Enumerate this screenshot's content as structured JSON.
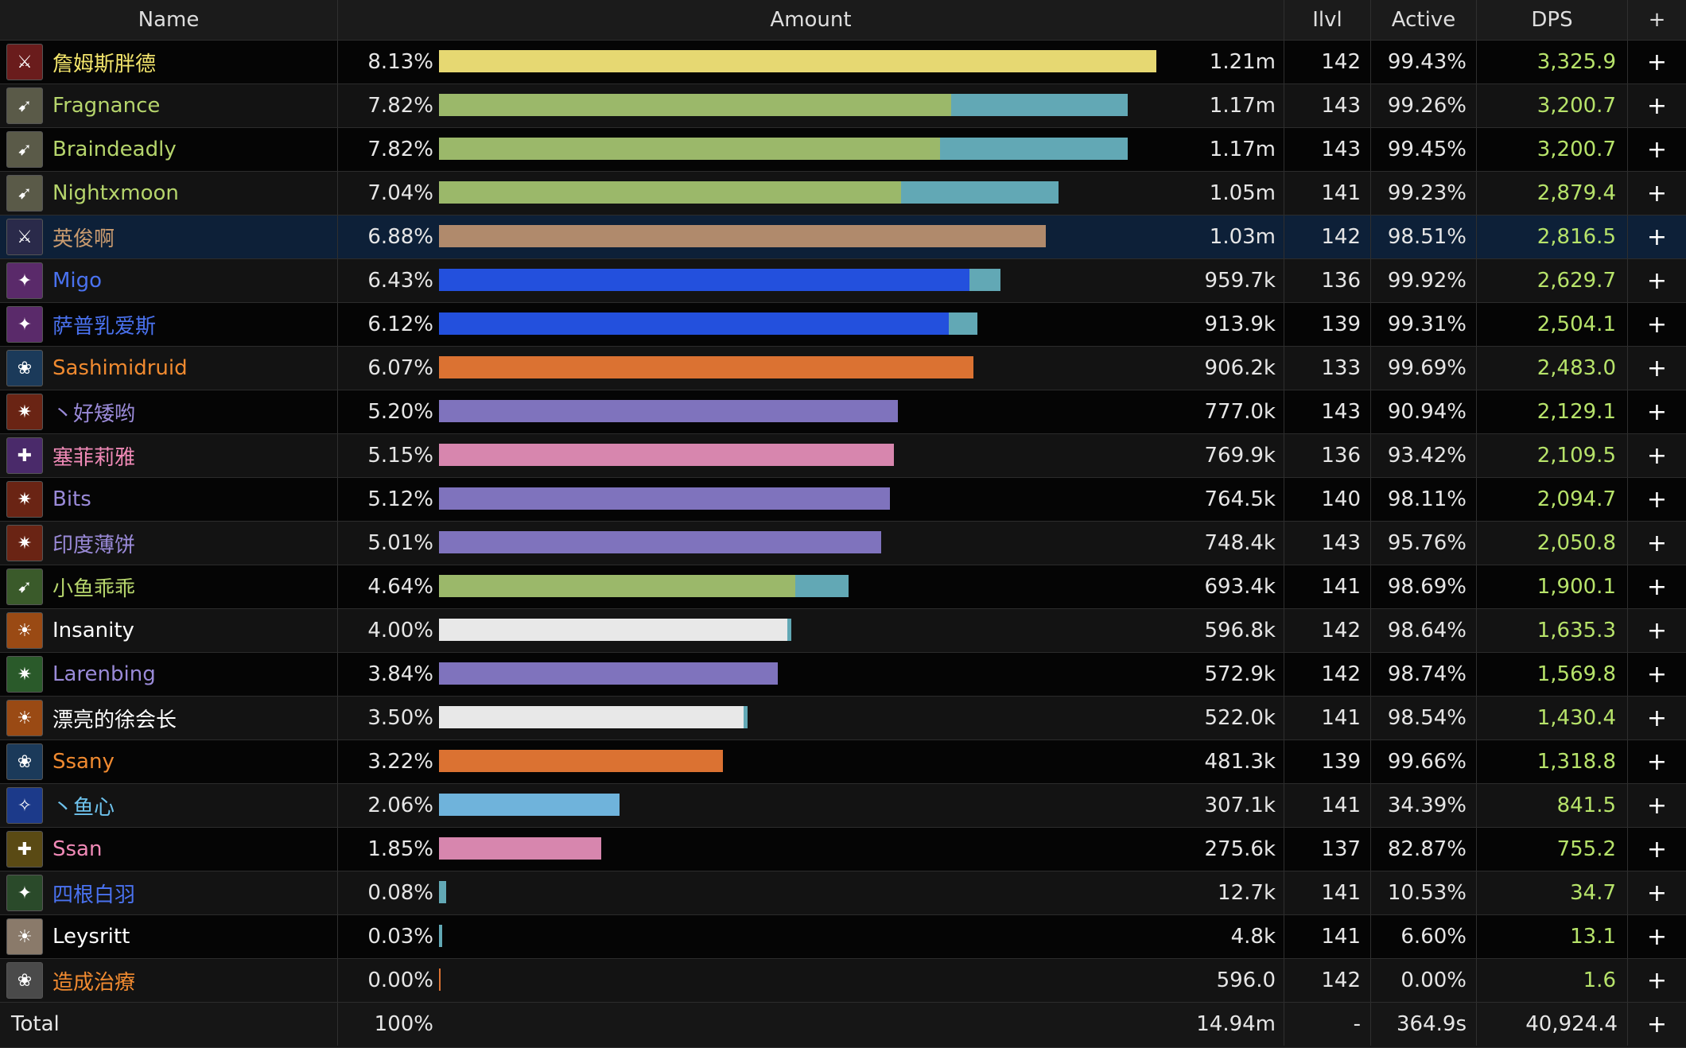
{
  "headers": {
    "name": "Name",
    "amount": "Amount",
    "ilvl": "Ilvl",
    "active": "Active",
    "dps": "DPS",
    "plus": "+"
  },
  "rows": [
    {
      "name": "詹姆斯胖德",
      "pct": "8.13%",
      "amount": "1.21m",
      "ilvl": "142",
      "active": "99.43%",
      "dps": "3,325.9",
      "name_color": "#f4e66c",
      "bar_main": 1.0,
      "bar_extra": 0.0,
      "bar_color": "#e6d872",
      "extra_color": "#62a8b5",
      "icon": "warrior-icon",
      "icon_bg": "#6a1c1c"
    },
    {
      "name": "Fragnance",
      "pct": "7.82%",
      "amount": "1.17m",
      "ilvl": "143",
      "active": "99.26%",
      "dps": "3,200.7",
      "name_color": "#b6d56c",
      "bar_main": 0.714,
      "bar_extra": 0.246,
      "bar_color": "#9bb86a",
      "extra_color": "#62a8b5",
      "icon": "hunter-icon",
      "icon_bg": "#5a5a48"
    },
    {
      "name": "Braindeadly",
      "pct": "7.82%",
      "amount": "1.17m",
      "ilvl": "143",
      "active": "99.45%",
      "dps": "3,200.7",
      "name_color": "#b6d56c",
      "bar_main": 0.699,
      "bar_extra": 0.261,
      "bar_color": "#9bb86a",
      "extra_color": "#62a8b5",
      "icon": "hunter-icon",
      "icon_bg": "#5a5a48"
    },
    {
      "name": "Nightxmoon",
      "pct": "7.04%",
      "amount": "1.05m",
      "ilvl": "141",
      "active": "99.23%",
      "dps": "2,879.4",
      "name_color": "#b6d56c",
      "bar_main": 0.644,
      "bar_extra": 0.22,
      "bar_color": "#9bb86a",
      "extra_color": "#62a8b5",
      "icon": "hunter-icon",
      "icon_bg": "#5a5a48"
    },
    {
      "name": "英俊啊",
      "pct": "6.88%",
      "amount": "1.03m",
      "ilvl": "142",
      "active": "98.51%",
      "dps": "2,816.5",
      "name_color": "#c99b6f",
      "bar_main": 0.846,
      "bar_extra": 0.0,
      "bar_color": "#b08a6c",
      "extra_color": "#62a8b5",
      "icon": "sword-icon",
      "icon_bg": "#2a2a4a"
    },
    {
      "name": "Migo",
      "pct": "6.43%",
      "amount": "959.7k",
      "ilvl": "136",
      "active": "99.92%",
      "dps": "2,629.7",
      "name_color": "#4a72f0",
      "bar_main": 0.74,
      "bar_extra": 0.043,
      "bar_color": "#2350dd",
      "extra_color": "#62a8b5",
      "icon": "shaman-icon",
      "icon_bg": "#5a2a6a"
    },
    {
      "name": "萨普乳爱斯",
      "pct": "6.12%",
      "amount": "913.9k",
      "ilvl": "139",
      "active": "99.31%",
      "dps": "2,504.1",
      "name_color": "#4a72f0",
      "bar_main": 0.711,
      "bar_extra": 0.04,
      "bar_color": "#2350dd",
      "extra_color": "#62a8b5",
      "icon": "shaman-icon",
      "icon_bg": "#5a2a6a"
    },
    {
      "name": "Sashimidruid",
      "pct": "6.07%",
      "amount": "906.2k",
      "ilvl": "133",
      "active": "99.69%",
      "dps": "2,483.0",
      "name_color": "#f08a30",
      "bar_main": 0.745,
      "bar_extra": 0.0,
      "bar_color": "#db7232",
      "extra_color": "#62a8b5",
      "icon": "druid-icon",
      "icon_bg": "#1b3a5a"
    },
    {
      "name": "丶好矮哟",
      "pct": "5.20%",
      "amount": "777.0k",
      "ilvl": "143",
      "active": "90.94%",
      "dps": "2,129.1",
      "name_color": "#9a8ad8",
      "bar_main": 0.64,
      "bar_extra": 0.0,
      "bar_color": "#7f73bd",
      "extra_color": "#62a8b5",
      "icon": "warlock-icon",
      "icon_bg": "#6a2414"
    },
    {
      "name": "塞菲莉雅",
      "pct": "5.15%",
      "amount": "769.9k",
      "ilvl": "136",
      "active": "93.42%",
      "dps": "2,109.5",
      "name_color": "#f08ab7",
      "bar_main": 0.634,
      "bar_extra": 0.0,
      "bar_color": "#d786ae",
      "extra_color": "#62a8b5",
      "icon": "paladin-icon",
      "icon_bg": "#4a2a6a"
    },
    {
      "name": "Bits",
      "pct": "5.12%",
      "amount": "764.5k",
      "ilvl": "140",
      "active": "98.11%",
      "dps": "2,094.7",
      "name_color": "#9a8ad8",
      "bar_main": 0.629,
      "bar_extra": 0.0,
      "bar_color": "#7f73bd",
      "extra_color": "#62a8b5",
      "icon": "warlock-icon",
      "icon_bg": "#6a2414"
    },
    {
      "name": "印度薄饼",
      "pct": "5.01%",
      "amount": "748.4k",
      "ilvl": "143",
      "active": "95.76%",
      "dps": "2,050.8",
      "name_color": "#9a8ad8",
      "bar_main": 0.616,
      "bar_extra": 0.0,
      "bar_color": "#7f73bd",
      "extra_color": "#62a8b5",
      "icon": "warlock-icon",
      "icon_bg": "#6a2414"
    },
    {
      "name": "小鱼乖乖",
      "pct": "4.64%",
      "amount": "693.4k",
      "ilvl": "141",
      "active": "98.69%",
      "dps": "1,900.1",
      "name_color": "#b6d56c",
      "bar_main": 0.497,
      "bar_extra": 0.074,
      "bar_color": "#9bb86a",
      "extra_color": "#62a8b5",
      "icon": "hunter-icon",
      "icon_bg": "#3a5a2a"
    },
    {
      "name": "Insanity",
      "pct": "4.00%",
      "amount": "596.8k",
      "ilvl": "142",
      "active": "98.64%",
      "dps": "1,635.3",
      "name_color": "#ffffff",
      "bar_main": 0.486,
      "bar_extra": 0.005,
      "bar_color": "#e8e8e8",
      "extra_color": "#62a8b5",
      "icon": "priest-icon",
      "icon_bg": "#9a4a14"
    },
    {
      "name": "Larenbing",
      "pct": "3.84%",
      "amount": "572.9k",
      "ilvl": "142",
      "active": "98.74%",
      "dps": "1,569.8",
      "name_color": "#9a8ad8",
      "bar_main": 0.472,
      "bar_extra": 0.0,
      "bar_color": "#7f73bd",
      "extra_color": "#62a8b5",
      "icon": "warlock-icon",
      "icon_bg": "#2a5a2a"
    },
    {
      "name": "漂亮的徐会长",
      "pct": "3.50%",
      "amount": "522.0k",
      "ilvl": "141",
      "active": "98.54%",
      "dps": "1,430.4",
      "name_color": "#ffffff",
      "bar_main": 0.425,
      "bar_extra": 0.005,
      "bar_color": "#e8e8e8",
      "extra_color": "#62a8b5",
      "icon": "priest-icon",
      "icon_bg": "#9a4a14"
    },
    {
      "name": "Ssany",
      "pct": "3.22%",
      "amount": "481.3k",
      "ilvl": "139",
      "active": "99.66%",
      "dps": "1,318.8",
      "name_color": "#f08a30",
      "bar_main": 0.396,
      "bar_extra": 0.0,
      "bar_color": "#db7232",
      "extra_color": "#62a8b5",
      "icon": "druid-icon",
      "icon_bg": "#1b3a5a"
    },
    {
      "name": "丶鱼心",
      "pct": "2.06%",
      "amount": "307.1k",
      "ilvl": "141",
      "active": "34.39%",
      "dps": "841.5",
      "name_color": "#6ec2ec",
      "bar_main": 0.252,
      "bar_extra": 0.0,
      "bar_color": "#6fb3db",
      "extra_color": "#62a8b5",
      "icon": "mage-icon",
      "icon_bg": "#1c3a8a"
    },
    {
      "name": "Ssan",
      "pct": "1.85%",
      "amount": "275.6k",
      "ilvl": "137",
      "active": "82.87%",
      "dps": "755.2",
      "name_color": "#f08ab7",
      "bar_main": 0.226,
      "bar_extra": 0.0,
      "bar_color": "#d786ae",
      "extra_color": "#62a8b5",
      "icon": "paladin-icon",
      "icon_bg": "#5a4a14"
    },
    {
      "name": "四根白羽",
      "pct": "0.08%",
      "amount": "12.7k",
      "ilvl": "141",
      "active": "10.53%",
      "dps": "34.7",
      "name_color": "#4a72f0",
      "bar_main": 0.0,
      "bar_extra": 0.01,
      "bar_color": "#2350dd",
      "extra_color": "#62a8b5",
      "icon": "shaman-icon",
      "icon_bg": "#2a4a2a"
    },
    {
      "name": "Leysritt",
      "pct": "0.03%",
      "amount": "4.8k",
      "ilvl": "141",
      "active": "6.60%",
      "dps": "13.1",
      "name_color": "#ffffff",
      "bar_main": 0.0,
      "bar_extra": 0.004,
      "bar_color": "#e8e8e8",
      "extra_color": "#62a8b5",
      "icon": "priest-icon",
      "icon_bg": "#8a7a6a"
    },
    {
      "name": "造成治療",
      "pct": "0.00%",
      "amount": "596.0",
      "ilvl": "142",
      "active": "0.00%",
      "dps": "1.6",
      "name_color": "#f08a30",
      "bar_main": 0.002,
      "bar_extra": 0.0,
      "bar_color": "#db7232",
      "extra_color": "#62a8b5",
      "icon": "druid-icon",
      "icon_bg": "#4a4a4a"
    }
  ],
  "total": {
    "label": "Total",
    "pct": "100%",
    "amount": "14.94m",
    "ilvl": "-",
    "active": "364.9s",
    "dps": "40,924.4",
    "plus": "+"
  },
  "selected_index": 4
}
